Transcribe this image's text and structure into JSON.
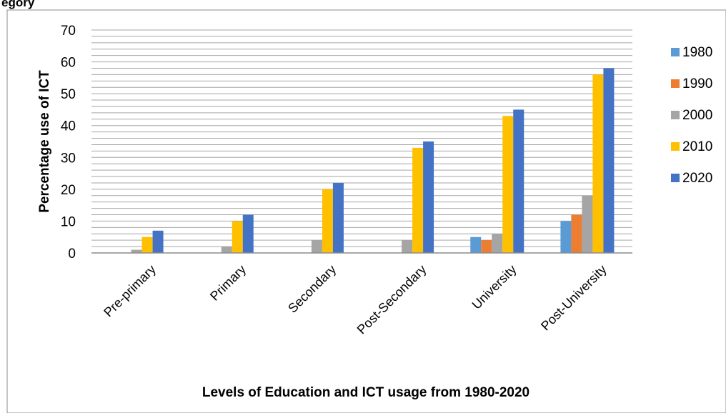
{
  "page_fragment": "egory",
  "chart_data": {
    "type": "bar",
    "categories": [
      "Pre-primary",
      "Primary",
      "Secondary",
      "Post-Secondary",
      "University",
      "Post-University"
    ],
    "series": [
      {
        "name": "1980",
        "color": "#5B9BD5",
        "values": [
          0,
          0,
          0,
          0,
          5,
          10
        ]
      },
      {
        "name": "1990",
        "color": "#ED7D31",
        "values": [
          0,
          0,
          0,
          0,
          4,
          12
        ]
      },
      {
        "name": "2000",
        "color": "#A5A5A5",
        "values": [
          1,
          2,
          4,
          4,
          6,
          18
        ]
      },
      {
        "name": "2010",
        "color": "#FFC000",
        "values": [
          5,
          10,
          20,
          33,
          43,
          56
        ]
      },
      {
        "name": "2020",
        "color": "#4472C4",
        "values": [
          7,
          12,
          22,
          35,
          45,
          58
        ]
      }
    ],
    "ylabel": "Percentage use of ICT",
    "xlabel": "Levels of Education and ICT usage from 1980-2020",
    "ylim": [
      0,
      70
    ],
    "yticks": [
      0,
      10,
      20,
      30,
      40,
      50,
      60,
      70
    ],
    "minor_grid_step": 2,
    "grid": true,
    "legend_position": "right"
  }
}
